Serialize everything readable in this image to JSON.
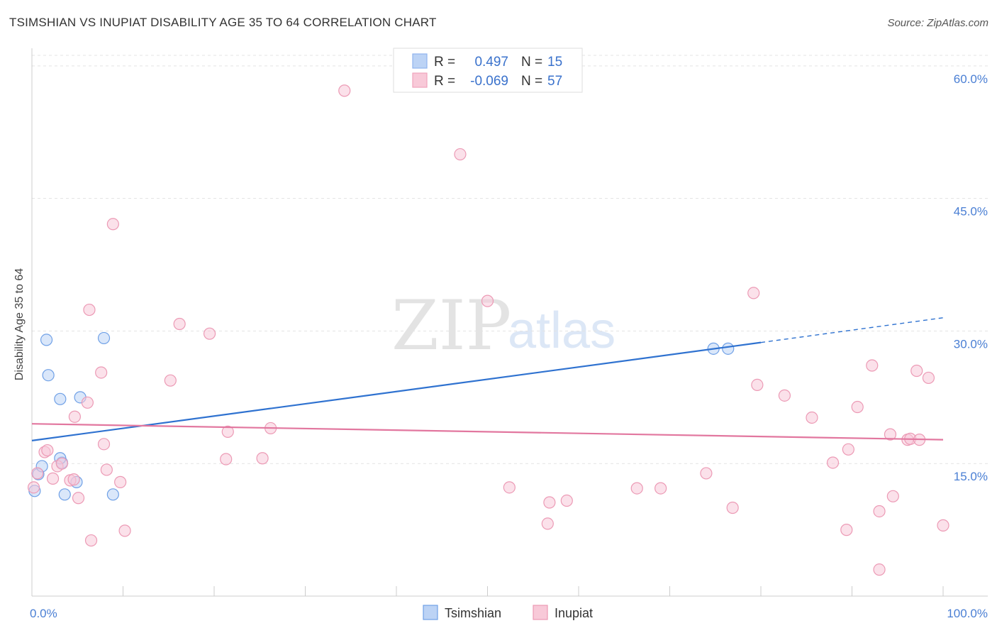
{
  "title": "TSIMSHIAN VS INUPIAT DISABILITY AGE 35 TO 64 CORRELATION CHART",
  "source": "Source: ZipAtlas.com",
  "chart_data": {
    "type": "scatter",
    "ylabel": "Disability Age 35 to 64",
    "xlim": [
      0,
      100
    ],
    "ylim": [
      0,
      62
    ],
    "x_ticks": [
      {
        "value": 0,
        "label": "0.0%"
      },
      {
        "value": 100,
        "label": "100.0%"
      }
    ],
    "y_ticks": [
      {
        "value": 15,
        "label": "15.0%"
      },
      {
        "value": 30,
        "label": "30.0%"
      },
      {
        "value": 45,
        "label": "45.0%"
      },
      {
        "value": 60,
        "label": "60.0%"
      }
    ],
    "grid": true,
    "legend_top": [
      {
        "r_label": "R =",
        "r_value": "0.497",
        "n_label": "N =",
        "n_value": "15",
        "color": "#8fb4ee",
        "fill": "#bcd3f5"
      },
      {
        "r_label": "R =",
        "r_value": "-0.069",
        "n_label": "N =",
        "n_value": "57",
        "color": "#f0a3bc",
        "fill": "#f8c9d8"
      }
    ],
    "series": [
      {
        "name": "Tsimshian",
        "color": "#6fa0e6",
        "fill": "#bcd3f5",
        "line_color": "#2f72d0",
        "trend": {
          "x0": 0,
          "y0": 17.6,
          "x1": 80,
          "y1": 28.7,
          "dash_to_x": 100,
          "dash_to_y": 31.5
        },
        "points": [
          [
            0.3,
            11.9
          ],
          [
            0.7,
            13.8
          ],
          [
            1.1,
            14.7
          ],
          [
            1.6,
            29.0
          ],
          [
            1.8,
            25.0
          ],
          [
            3.1,
            22.3
          ],
          [
            3.3,
            15.1
          ],
          [
            3.1,
            15.6
          ],
          [
            3.6,
            11.5
          ],
          [
            4.9,
            12.9
          ],
          [
            5.3,
            22.5
          ],
          [
            7.9,
            29.2
          ],
          [
            8.9,
            11.5
          ],
          [
            74.8,
            28.0
          ],
          [
            76.4,
            28.0
          ]
        ]
      },
      {
        "name": "Inupiat",
        "color": "#ec9ab5",
        "fill": "#f8c9d8",
        "line_color": "#e2779f",
        "trend": {
          "x0": 0,
          "y0": 19.5,
          "x1": 100,
          "y1": 17.7
        },
        "points": [
          [
            0.2,
            12.3
          ],
          [
            0.6,
            13.9
          ],
          [
            1.4,
            16.3
          ],
          [
            1.7,
            16.5
          ],
          [
            2.3,
            13.3
          ],
          [
            2.8,
            14.7
          ],
          [
            3.3,
            15.0
          ],
          [
            4.2,
            13.1
          ],
          [
            4.6,
            13.2
          ],
          [
            4.7,
            20.3
          ],
          [
            5.1,
            11.1
          ],
          [
            6.1,
            21.9
          ],
          [
            6.3,
            32.4
          ],
          [
            6.5,
            6.3
          ],
          [
            7.6,
            25.3
          ],
          [
            7.9,
            17.2
          ],
          [
            8.2,
            14.3
          ],
          [
            8.9,
            42.1
          ],
          [
            9.7,
            12.9
          ],
          [
            10.2,
            7.4
          ],
          [
            15.2,
            24.4
          ],
          [
            16.2,
            30.8
          ],
          [
            19.5,
            29.7
          ],
          [
            21.3,
            15.5
          ],
          [
            21.5,
            18.6
          ],
          [
            25.3,
            15.6
          ],
          [
            26.2,
            19.0
          ],
          [
            34.3,
            57.2
          ],
          [
            47.0,
            50.0
          ],
          [
            50.0,
            33.4
          ],
          [
            52.4,
            12.3
          ],
          [
            56.6,
            8.2
          ],
          [
            56.8,
            10.6
          ],
          [
            58.7,
            10.8
          ],
          [
            66.4,
            12.2
          ],
          [
            69.0,
            12.2
          ],
          [
            74.0,
            13.9
          ],
          [
            76.9,
            10.0
          ],
          [
            79.2,
            34.3
          ],
          [
            79.6,
            23.9
          ],
          [
            82.6,
            22.7
          ],
          [
            85.6,
            20.2
          ],
          [
            87.9,
            15.1
          ],
          [
            89.4,
            7.5
          ],
          [
            89.6,
            16.6
          ],
          [
            90.6,
            21.4
          ],
          [
            92.2,
            26.1
          ],
          [
            93.0,
            9.6
          ],
          [
            94.2,
            18.3
          ],
          [
            94.5,
            11.3
          ],
          [
            96.1,
            17.7
          ],
          [
            96.4,
            17.8
          ],
          [
            97.1,
            25.5
          ],
          [
            97.4,
            17.7
          ],
          [
            98.4,
            24.7
          ],
          [
            100.0,
            8.0
          ],
          [
            93.0,
            3.0
          ]
        ]
      }
    ]
  }
}
